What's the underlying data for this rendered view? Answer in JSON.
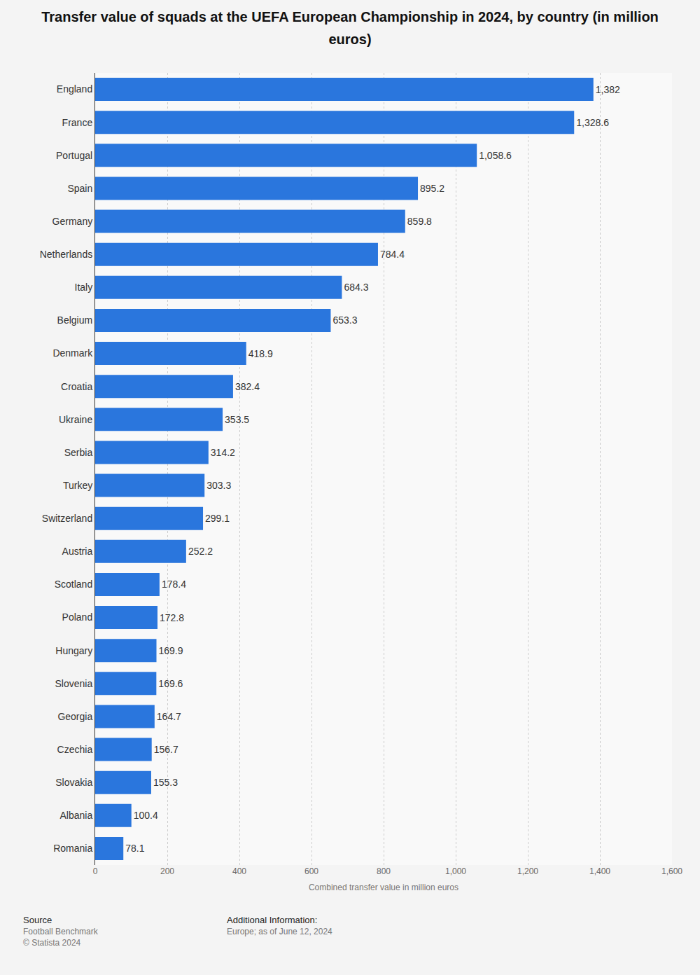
{
  "chart_data": {
    "type": "bar",
    "title": "Transfer value of squads at the UEFA European Championship in 2024, by country (in million euros)",
    "xlabel": "Combined transfer value in million euros",
    "orientation": "horizontal",
    "categories": [
      "England",
      "France",
      "Portugal",
      "Spain",
      "Germany",
      "Netherlands",
      "Italy",
      "Belgium",
      "Denmark",
      "Croatia",
      "Ukraine",
      "Serbia",
      "Turkey",
      "Switzerland",
      "Austria",
      "Scotland",
      "Poland",
      "Hungary",
      "Slovenia",
      "Georgia",
      "Czechia",
      "Slovakia",
      "Albania",
      "Romania"
    ],
    "values": [
      1382,
      1328.6,
      1058.6,
      895.2,
      859.8,
      784.4,
      684.3,
      653.3,
      418.9,
      382.4,
      353.5,
      314.2,
      303.3,
      299.1,
      252.2,
      178.4,
      172.8,
      169.9,
      169.6,
      164.7,
      156.7,
      155.3,
      100.4,
      78.1
    ],
    "value_labels": [
      "1,382",
      "1,328.6",
      "1,058.6",
      "895.2",
      "859.8",
      "784.4",
      "684.3",
      "653.3",
      "418.9",
      "382.4",
      "353.5",
      "314.2",
      "303.3",
      "299.1",
      "252.2",
      "178.4",
      "172.8",
      "169.9",
      "169.6",
      "164.7",
      "156.7",
      "155.3",
      "100.4",
      "78.1"
    ],
    "data_labels": true,
    "color": "#2a76dd",
    "xlim": [
      0,
      1600
    ],
    "xticks": [
      0,
      200,
      400,
      600,
      800,
      {
        "value": 1000,
        "label": "1,000"
      },
      {
        "value": 1200,
        "label": "1,200"
      },
      {
        "value": 1400,
        "label": "1,400"
      },
      {
        "value": 1600,
        "label": "1,600"
      }
    ],
    "grid": true,
    "source": {
      "heading": "Source",
      "lines": [
        "Football Benchmark",
        "© Statista 2024"
      ]
    },
    "note": {
      "heading": "Additional Information:",
      "lines": [
        "Europe; as of June 12, 2024"
      ]
    }
  }
}
